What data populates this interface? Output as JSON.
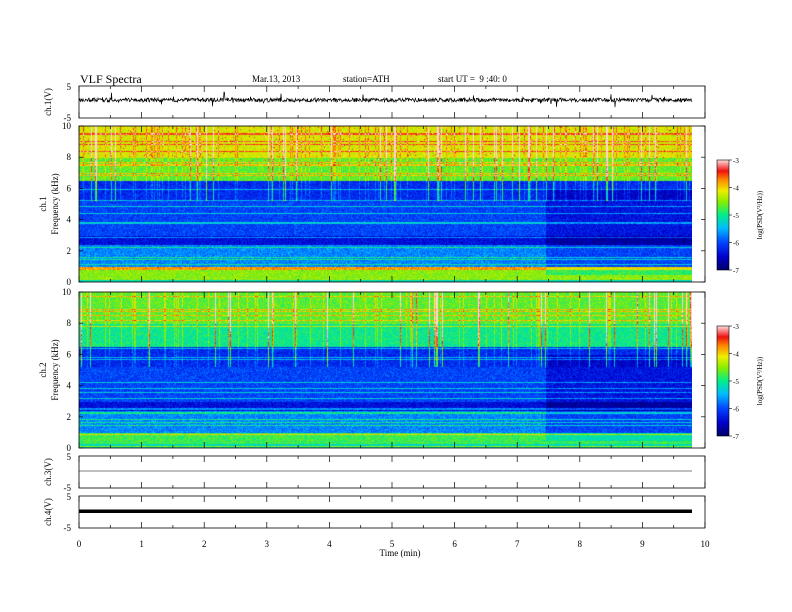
{
  "header": {
    "title": "VLF Spectra",
    "date": "Mar.13, 2013",
    "station": "station=ATH",
    "start": "start UT =  9 :40: 0"
  },
  "chart_data": [
    {
      "type": "line",
      "ylabel": "ch.1(V)",
      "ylim": [
        -5,
        5
      ],
      "y_ticks": [
        "5",
        "-5"
      ],
      "xlim": [
        0,
        10
      ],
      "description_values": "broadband waveform with spiky noise around ~1.5 V"
    },
    {
      "type": "heatmap",
      "ylabel": "ch.1\nFrequency (kHz)",
      "ylabel_top": "ch.1",
      "ylabel_bottom": "Frequency (kHz)",
      "ylim": [
        0,
        10
      ],
      "y_ticks": [
        "0",
        "2",
        "4",
        "6",
        "8",
        "10"
      ],
      "xlim": [
        0,
        9.8
      ],
      "colorbar": {
        "label": "log(PSD(V²/Hz))",
        "range": [
          -7,
          -3
        ],
        "ticks": [
          "-3",
          "-4",
          "-5",
          "-6",
          "-7"
        ]
      }
    },
    {
      "type": "heatmap",
      "ylabel_top": "ch.2",
      "ylabel_bottom": "Frequency (kHz)",
      "ylim": [
        0,
        10
      ],
      "y_ticks": [
        "0",
        "2",
        "4",
        "6",
        "8",
        "10"
      ],
      "xlim": [
        0,
        9.8
      ],
      "colorbar": {
        "label": "log(PSD(V²/Hz))",
        "range": [
          -7,
          -3
        ],
        "ticks": [
          "-3",
          "-4",
          "-5",
          "-6",
          "-7"
        ]
      }
    },
    {
      "type": "line",
      "ylabel": "ch.3(V)",
      "ylim": [
        -5,
        5
      ],
      "y_ticks": [
        "5",
        "-5"
      ],
      "description_values": "flat line near 0 V"
    },
    {
      "type": "line",
      "ylabel": "ch.4(V)",
      "ylim": [
        -5,
        5
      ],
      "y_ticks": [
        "5",
        "-5"
      ],
      "description_values": "thick band near 0 V"
    }
  ],
  "xaxis": {
    "label": "Time (min)",
    "ticks": [
      "0",
      "1",
      "2",
      "3",
      "4",
      "5",
      "6",
      "7",
      "8",
      "9",
      "10"
    ],
    "range": [
      0,
      10
    ]
  }
}
